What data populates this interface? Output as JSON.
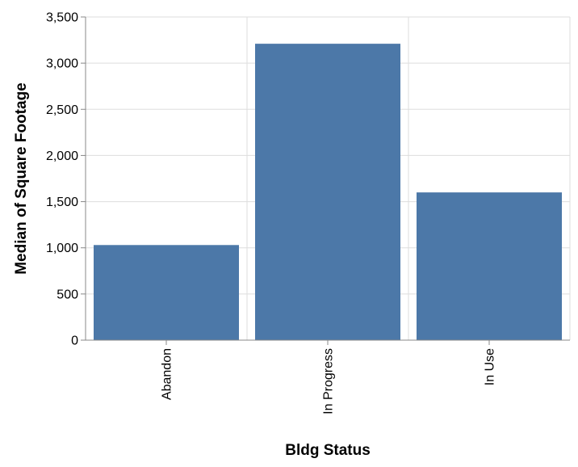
{
  "chart_data": {
    "type": "bar",
    "categories": [
      "Abandon",
      "In Progress",
      "In Use"
    ],
    "values": [
      1030,
      3210,
      1600
    ],
    "xlabel": "Bldg Status",
    "ylabel": "Median of Square Footage",
    "ylim": [
      0,
      3500
    ],
    "yticks": [
      0,
      500,
      1000,
      1500,
      2000,
      2500,
      3000,
      3500
    ],
    "ytick_labels": [
      "0",
      "500",
      "1,000",
      "1,500",
      "2,000",
      "2,500",
      "3,000",
      "3,500"
    ],
    "grid": true,
    "bar_color": "#4c78a8",
    "grid_color": "#dddddd",
    "axis_color": "#888888"
  }
}
